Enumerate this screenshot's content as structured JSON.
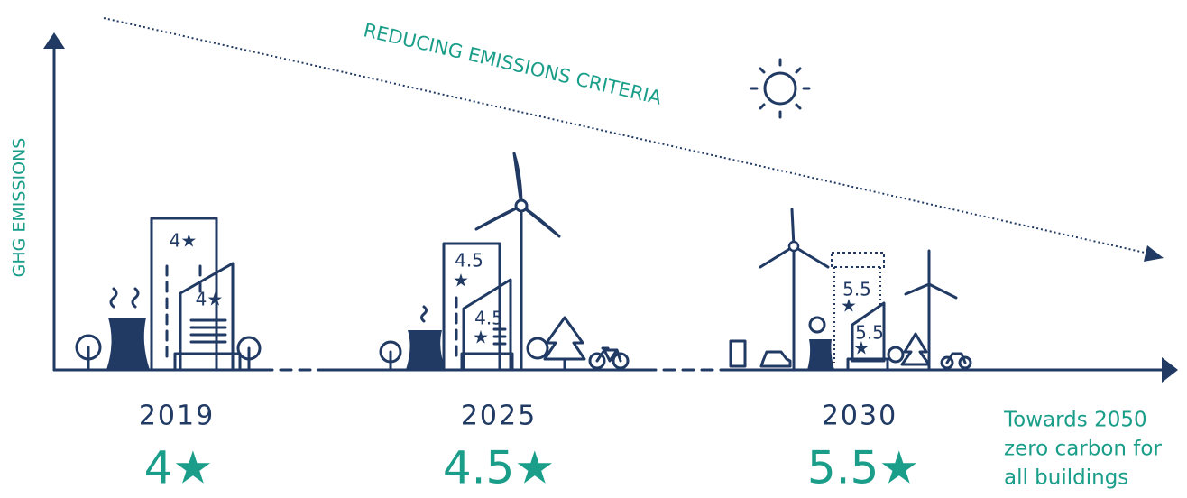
{
  "axis": {
    "y_label": "GHG EMISSIONS"
  },
  "trend": {
    "label": "REDUCING EMISSIONS CRITERIA"
  },
  "milestones": [
    {
      "year": "2019",
      "rating": "4★",
      "building_labels": [
        "4★",
        "4★"
      ]
    },
    {
      "year": "2025",
      "rating": "4.5★",
      "building_labels": [
        "4.5",
        "★",
        "4.5",
        "★"
      ]
    },
    {
      "year": "2030",
      "rating": "5.5★",
      "building_labels": [
        "5.5",
        "★",
        "5.5",
        "★"
      ]
    }
  ],
  "note": {
    "lines": [
      "Towards 2050",
      "zero carbon for",
      "all buildings"
    ]
  }
}
